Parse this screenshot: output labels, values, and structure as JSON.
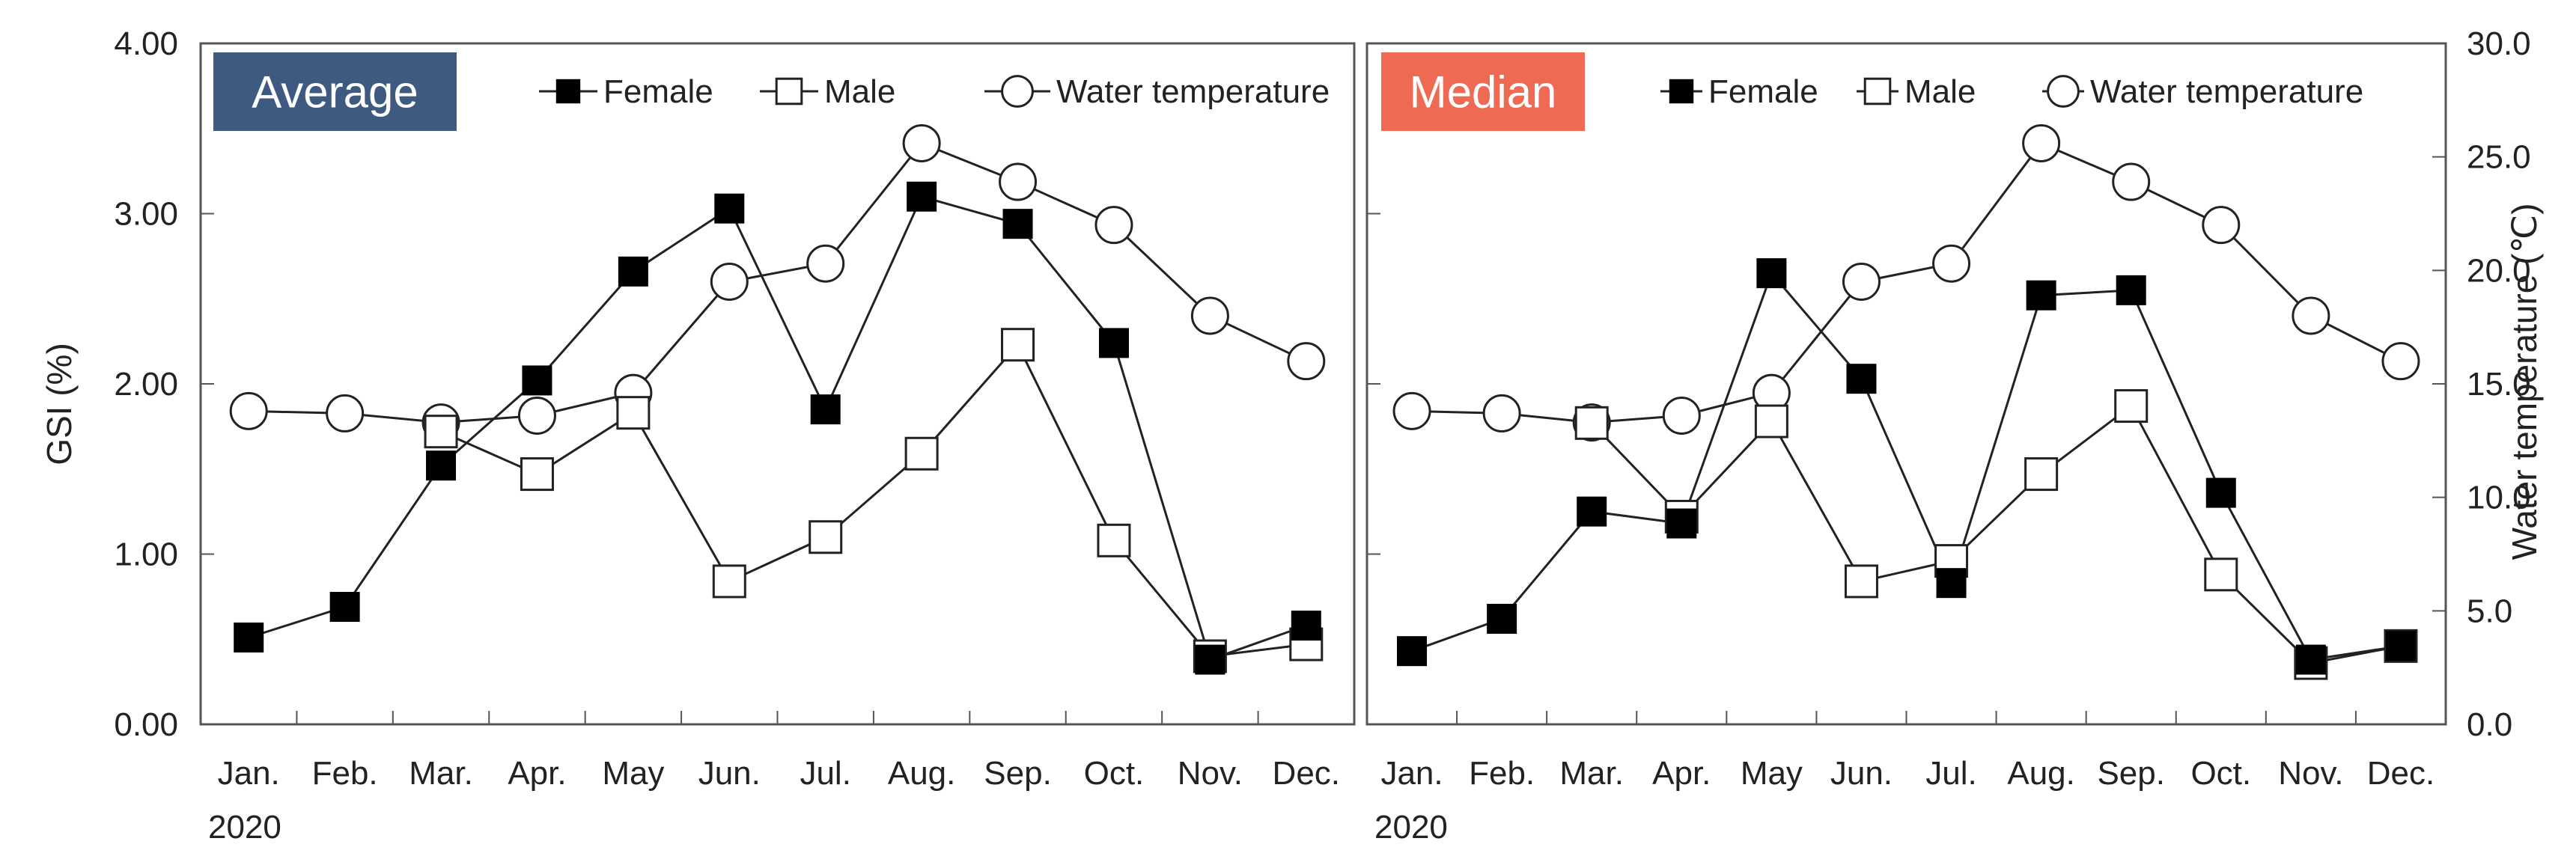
{
  "chart_data": {
    "type": "line",
    "panels": [
      {
        "badge": "Average",
        "badge_color": "#3e5a80",
        "left_axis": true,
        "right_axis": false,
        "series": [
          {
            "name": "Female",
            "axis": "left",
            "marker": "filled-square",
            "values": [
              0.51,
              0.69,
              1.52,
              2.02,
              2.66,
              3.03,
              1.85,
              3.1,
              2.94,
              2.24,
              0.38,
              0.58
            ]
          },
          {
            "name": "Male",
            "axis": "left",
            "marker": "open-square",
            "values": [
              null,
              null,
              1.72,
              1.47,
              1.83,
              0.84,
              1.1,
              1.59,
              2.23,
              1.08,
              0.4,
              0.47
            ]
          },
          {
            "name": "Water temperature",
            "axis": "right",
            "marker": "open-circle",
            "values": [
              13.8,
              13.7,
              13.3,
              13.6,
              14.6,
              19.5,
              20.3,
              25.6,
              23.9,
              22.0,
              18.0,
              16.0
            ]
          }
        ]
      },
      {
        "badge": "Median",
        "badge_color": "#ee6a52",
        "left_axis": false,
        "right_axis": true,
        "series": [
          {
            "name": "Female",
            "axis": "left",
            "marker": "filled-square",
            "values": [
              0.43,
              0.62,
              1.25,
              1.18,
              2.65,
              2.03,
              0.83,
              2.52,
              2.55,
              1.36,
              0.38,
              0.46
            ]
          },
          {
            "name": "Male",
            "axis": "left",
            "marker": "open-square",
            "values": [
              null,
              null,
              1.77,
              1.22,
              1.78,
              0.84,
              0.96,
              1.47,
              1.87,
              0.88,
              0.36,
              0.46
            ]
          },
          {
            "name": "Water temperature",
            "axis": "right",
            "marker": "open-circle",
            "values": [
              13.8,
              13.7,
              13.3,
              13.6,
              14.6,
              19.5,
              20.3,
              25.6,
              23.9,
              22.0,
              18.0,
              16.0
            ]
          }
        ]
      }
    ],
    "categories": [
      "Jan.",
      "Feb.",
      "Mar.",
      "Apr.",
      "May",
      "Jun.",
      "Jul.",
      "Aug.",
      "Sep.",
      "Oct.",
      "Nov.",
      "Dec."
    ],
    "year_label": "2020",
    "ylabel": "GSI (%)",
    "ylabel_right": "Water temperature (℃)",
    "ylim": [
      0,
      4
    ],
    "ylim_right": [
      0,
      30
    ],
    "yticks": [
      "0.00",
      "1.00",
      "2.00",
      "3.00",
      "4.00"
    ],
    "yticks_right": [
      "0.0",
      "5.0",
      "10.0",
      "15.0",
      "20.0",
      "25.0",
      "30.0"
    ],
    "legend_position": "top-right",
    "grid": false
  }
}
